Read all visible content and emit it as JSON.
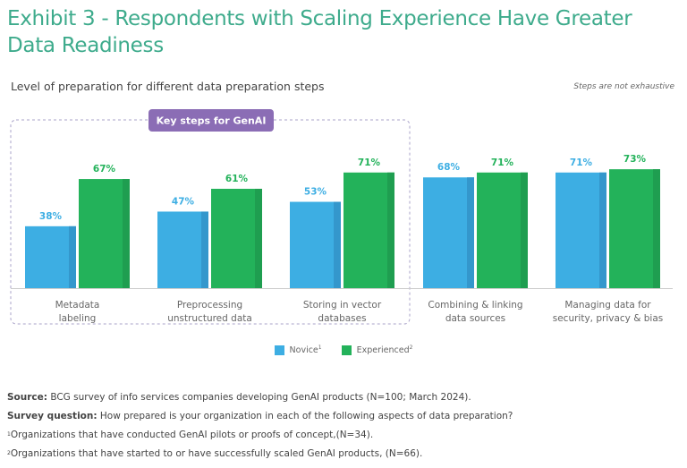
{
  "title": "Exhibit 3 - Respondents with Scaling Experience Have Greater Data Readiness",
  "subtitle": "Level of preparation for different data preparation steps",
  "note": "Steps are not exhaustive",
  "colors": {
    "novice": "#3daee3",
    "novice_shade": "#3497cc",
    "experienced": "#23b25a",
    "experienced_shade": "#1f9e50",
    "callout": "#8b6db5",
    "title": "#3eab8c"
  },
  "chart_data": {
    "type": "bar",
    "title": "Level of preparation for different data preparation steps",
    "xlabel": "",
    "ylabel": "",
    "ylim": [
      0,
      100
    ],
    "grid": false,
    "legend_position": "bottom-center",
    "categories": [
      "Metadata labeling",
      "Preprocessing unstructured data",
      "Storing in vector databases",
      "Combining & linking data sources",
      "Managing data for security, privacy & bias"
    ],
    "category_lines": [
      [
        "Metadata",
        "labeling"
      ],
      [
        "Preprocessing",
        "unstructured data"
      ],
      [
        "Storing in vector",
        "databases"
      ],
      [
        "Combining & linking",
        "data sources"
      ],
      [
        "Managing data for",
        "security, privacy & bias"
      ]
    ],
    "series": [
      {
        "name": "Novice",
        "superscript": "1",
        "values": [
          38,
          47,
          53,
          68,
          71
        ],
        "labels": [
          "38%",
          "47%",
          "53%",
          "68%",
          "71%"
        ]
      },
      {
        "name": "Experienced",
        "superscript": "2",
        "values": [
          67,
          61,
          71,
          71,
          73
        ],
        "labels": [
          "67%",
          "61%",
          "71%",
          "71%",
          "73%"
        ]
      }
    ],
    "annotations": [
      {
        "text": "Key steps for GenAI",
        "groups_categories": [
          0,
          1,
          2
        ]
      }
    ]
  },
  "legend": [
    {
      "label": "Novice",
      "sup": "1"
    },
    {
      "label": "Experienced",
      "sup": "2"
    }
  ],
  "footer": {
    "source_label": "Source:",
    "source_text": " BCG survey of info services companies developing GenAI products (N=100; March 2024).",
    "question_label": "Survey question:",
    "question_text": " How prepared is your organization in each of the following aspects of data preparation?",
    "note1_sup": "1",
    "note1_text": "Organizations that have conducted GenAI pilots or proofs of concept,(N=34).",
    "note2_sup": "2",
    "note2_text": "Organizations that have started to or have successfully scaled GenAI products, (N=66)."
  }
}
